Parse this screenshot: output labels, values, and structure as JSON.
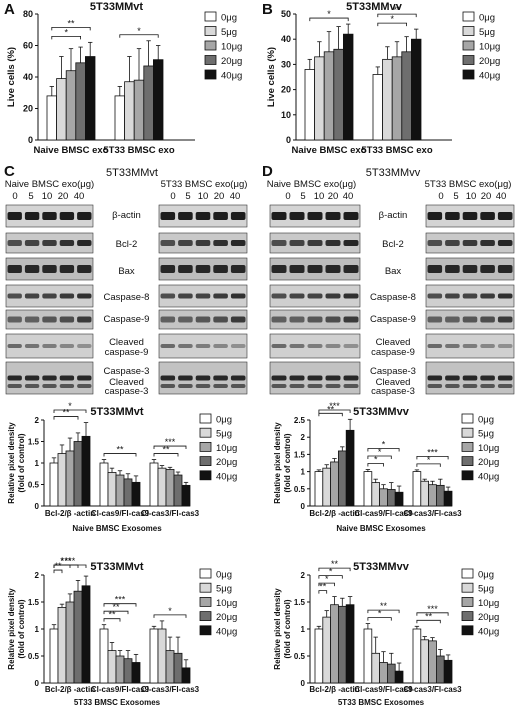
{
  "colors": {
    "dose": [
      "#ffffff",
      "#d9d9d9",
      "#a6a6a6",
      "#6e6e6e",
      "#111111"
    ],
    "band": "#2a2a2a",
    "membrane": "#c8c8c8"
  },
  "legend": {
    "labels": [
      "0μg",
      "5μg",
      "10μg",
      "20μg",
      "40μg"
    ]
  },
  "panels": {
    "A": {
      "letter": "A"
    },
    "B": {
      "letter": "B"
    },
    "C": {
      "letter": "C",
      "title": "5T33MMvt",
      "left_header": "Naive BMSC exo(μg)",
      "right_header": "5T33 BMSC exo(μg)",
      "doses": [
        "0",
        "5",
        "10",
        "20",
        "40"
      ],
      "proteins": [
        "β-actin",
        "Bcl-2",
        "Bax",
        "Caspase-8",
        "Caspase-9",
        "Cleaved",
        "caspase-9",
        "Caspase-3",
        "Cleaved",
        "caspase-3"
      ]
    },
    "D": {
      "letter": "D",
      "title": "5T33MMvv",
      "left_header": "Naive BMSC exo(μg)",
      "right_header": "5T33 BMSC exo(μg)",
      "doses": [
        "0",
        "5",
        "10",
        "20",
        "40"
      ],
      "proteins": [
        "β-actin",
        "Bcl-2",
        "Bax",
        "Caspase-8",
        "Caspase-9",
        "Cleaved",
        "caspase-9",
        "Caspase-3",
        "Cleaved",
        "caspase-3"
      ]
    }
  },
  "chart_data": [
    {
      "id": "A",
      "type": "bar",
      "title": "5T33MMvt",
      "xlabel": "",
      "ylabel": "Live cells (%)",
      "ylim": [
        0,
        80
      ],
      "yticks": [
        0,
        20,
        40,
        60,
        80
      ],
      "categories": [
        "Naive BMSC exo",
        "5T33 BMSC exo"
      ],
      "series": [
        {
          "name": "0μg",
          "values": [
            28,
            28
          ],
          "errors": [
            6,
            6
          ]
        },
        {
          "name": "5μg",
          "values": [
            39,
            37
          ],
          "errors": [
            14,
            16
          ]
        },
        {
          "name": "10μg",
          "values": [
            44,
            38
          ],
          "errors": [
            14,
            20
          ]
        },
        {
          "name": "20μg",
          "values": [
            49,
            47
          ],
          "errors": [
            10,
            16
          ]
        },
        {
          "name": "40μg",
          "values": [
            53,
            51
          ],
          "errors": [
            9,
            9
          ]
        }
      ],
      "significance": [
        {
          "group": 0,
          "from": 0,
          "to": 4,
          "label": "**"
        },
        {
          "group": 0,
          "from": 0,
          "to": 3,
          "label": "*"
        },
        {
          "group": 1,
          "from": 0,
          "to": 4,
          "label": "*"
        }
      ]
    },
    {
      "id": "B",
      "type": "bar",
      "title": "5T33MMvv",
      "xlabel": "",
      "ylabel": "Live cells (%)",
      "ylim": [
        0,
        50
      ],
      "yticks": [
        0,
        10,
        20,
        30,
        40,
        50
      ],
      "categories": [
        "Naive BMSC exo",
        "5T33 BMSC exo"
      ],
      "series": [
        {
          "name": "0μg",
          "values": [
            28,
            26
          ],
          "errors": [
            4,
            3
          ]
        },
        {
          "name": "5μg",
          "values": [
            33,
            32
          ],
          "errors": [
            6,
            5
          ]
        },
        {
          "name": "10μg",
          "values": [
            35,
            33
          ],
          "errors": [
            8,
            6
          ]
        },
        {
          "name": "20μg",
          "values": [
            36,
            35
          ],
          "errors": [
            9,
            6
          ]
        },
        {
          "name": "40μg",
          "values": [
            42,
            40
          ],
          "errors": [
            4,
            4
          ]
        }
      ],
      "significance": [
        {
          "group": 0,
          "from": 0,
          "to": 4,
          "label": "*"
        },
        {
          "group": 1,
          "from": 0,
          "to": 4,
          "label": "**"
        },
        {
          "group": 1,
          "from": 0,
          "to": 3,
          "label": "*"
        }
      ]
    },
    {
      "id": "C1",
      "type": "bar",
      "title": "5T33MMvt",
      "xlabel": "Naive BMSC Exosomes",
      "ylabel": "Relative pixel density (fold of control)",
      "ylim": [
        0,
        2.0
      ],
      "yticks": [
        0,
        0.5,
        1.0,
        1.5,
        2.0
      ],
      "categories": [
        "Bcl-2/β -actin",
        "Cl-cas9/Fl-cas9",
        "Cl-cas3/Fl-cas3"
      ],
      "series": [
        {
          "name": "0μg",
          "values": [
            1.0,
            1.0,
            1.0
          ],
          "errors": [
            0.12,
            0.08,
            0.08
          ]
        },
        {
          "name": "5μg",
          "values": [
            1.22,
            0.78,
            0.88
          ],
          "errors": [
            0.2,
            0.1,
            0.06
          ]
        },
        {
          "name": "10μg",
          "values": [
            1.28,
            0.72,
            0.85
          ],
          "errors": [
            0.3,
            0.1,
            0.05
          ]
        },
        {
          "name": "20μg",
          "values": [
            1.5,
            0.63,
            0.72
          ],
          "errors": [
            0.2,
            0.12,
            0.07
          ]
        },
        {
          "name": "40μg",
          "values": [
            1.62,
            0.55,
            0.48
          ],
          "errors": [
            0.32,
            0.15,
            0.07
          ]
        }
      ],
      "significance": [
        {
          "group": 0,
          "from": 0,
          "to": 4,
          "label": "*"
        },
        {
          "group": 0,
          "from": 0,
          "to": 3,
          "label": "**"
        },
        {
          "group": 1,
          "from": 0,
          "to": 4,
          "label": "**"
        },
        {
          "group": 2,
          "from": 0,
          "to": 4,
          "label": "***"
        },
        {
          "group": 2,
          "from": 0,
          "to": 3,
          "label": "**"
        }
      ]
    },
    {
      "id": "D1",
      "type": "bar",
      "title": "5T33MMvv",
      "xlabel": "Naive BMSC Exosomes",
      "ylabel": "Relative pixel density (fold of control)",
      "ylim": [
        0,
        2.5
      ],
      "yticks": [
        0,
        0.5,
        1.0,
        1.5,
        2.0,
        2.5
      ],
      "categories": [
        "Bcl-2/β -actin",
        "Cl-cas9/Fl-cas9",
        "Cl-cas3/Fl-cas3"
      ],
      "series": [
        {
          "name": "0μg",
          "values": [
            1.0,
            1.0,
            1.0
          ],
          "errors": [
            0.05,
            0.06,
            0.05
          ]
        },
        {
          "name": "5μg",
          "values": [
            1.1,
            0.68,
            0.72
          ],
          "errors": [
            0.1,
            0.1,
            0.06
          ]
        },
        {
          "name": "10μg",
          "values": [
            1.28,
            0.5,
            0.62
          ],
          "errors": [
            0.1,
            0.12,
            0.1
          ]
        },
        {
          "name": "20μg",
          "values": [
            1.6,
            0.48,
            0.6
          ],
          "errors": [
            0.12,
            0.2,
            0.18
          ]
        },
        {
          "name": "40μg",
          "values": [
            2.2,
            0.4,
            0.43
          ],
          "errors": [
            0.32,
            0.18,
            0.12
          ]
        }
      ],
      "significance": [
        {
          "group": 0,
          "from": 0,
          "to": 4,
          "label": "***"
        },
        {
          "group": 0,
          "from": 0,
          "to": 3,
          "label": "**"
        },
        {
          "group": 1,
          "from": 0,
          "to": 4,
          "label": "*"
        },
        {
          "group": 1,
          "from": 0,
          "to": 3,
          "label": "*"
        },
        {
          "group": 1,
          "from": 0,
          "to": 2,
          "label": "*"
        },
        {
          "group": 2,
          "from": 0,
          "to": 4,
          "label": "***"
        },
        {
          "group": 2,
          "from": 0,
          "to": 3,
          "label": "*"
        }
      ]
    },
    {
      "id": "C2",
      "type": "bar",
      "title": "5T33MMvt",
      "xlabel": "5T33 BMSC Exosomes",
      "ylabel": "Relative pixel density (fold of control)",
      "ylim": [
        0,
        2.0
      ],
      "yticks": [
        0,
        0.5,
        1.0,
        1.5,
        2.0
      ],
      "categories": [
        "Bcl-2/β -actin",
        "Cl-cas9/Fl-cas9",
        "Cl-cas3/Fl-cas3"
      ],
      "series": [
        {
          "name": "0μg",
          "values": [
            1.0,
            1.0,
            1.0
          ],
          "errors": [
            0.08,
            0.08,
            0.05
          ]
        },
        {
          "name": "5μg",
          "values": [
            1.4,
            0.6,
            1.0
          ],
          "errors": [
            0.06,
            0.15,
            0.15
          ]
        },
        {
          "name": "10μg",
          "values": [
            1.5,
            0.5,
            0.6
          ],
          "errors": [
            0.15,
            0.1,
            0.25
          ]
        },
        {
          "name": "20μg",
          "values": [
            1.7,
            0.45,
            0.55
          ],
          "errors": [
            0.2,
            0.15,
            0.3
          ]
        },
        {
          "name": "40μg",
          "values": [
            1.8,
            0.38,
            0.28
          ],
          "errors": [
            0.18,
            0.15,
            0.15
          ]
        }
      ],
      "significance": [
        {
          "group": 0,
          "from": 0,
          "to": 4,
          "label": "***"
        },
        {
          "group": 0,
          "from": 0,
          "to": 3,
          "label": "***"
        },
        {
          "group": 0,
          "from": 0,
          "to": 2,
          "label": "*"
        },
        {
          "group": 0,
          "from": 0,
          "to": 1,
          "label": "**"
        },
        {
          "group": 1,
          "from": 0,
          "to": 4,
          "label": "***"
        },
        {
          "group": 1,
          "from": 0,
          "to": 3,
          "label": "**"
        },
        {
          "group": 1,
          "from": 0,
          "to": 2,
          "label": "**"
        },
        {
          "group": 2,
          "from": 0,
          "to": 4,
          "label": "*"
        }
      ]
    },
    {
      "id": "D2",
      "type": "bar",
      "title": "5T33MMvv",
      "xlabel": "5T33 BMSC Exosomes",
      "ylabel": "Relative pixel density (fold of control)",
      "ylim": [
        0,
        2.0
      ],
      "yticks": [
        0,
        0.5,
        1.0,
        1.5,
        2.0
      ],
      "categories": [
        "Bcl-2/β -actin",
        "Cl-cas9/Fl-cas9",
        "Cl-cas3/Fl-cas3"
      ],
      "series": [
        {
          "name": "0μg",
          "values": [
            1.0,
            1.0,
            1.0
          ],
          "errors": [
            0.05,
            0.1,
            0.05
          ]
        },
        {
          "name": "5μg",
          "values": [
            1.22,
            0.55,
            0.8
          ],
          "errors": [
            0.12,
            0.3,
            0.06
          ]
        },
        {
          "name": "10μg",
          "values": [
            1.45,
            0.38,
            0.78
          ],
          "errors": [
            0.15,
            0.2,
            0.06
          ]
        },
        {
          "name": "20μg",
          "values": [
            1.42,
            0.35,
            0.5
          ],
          "errors": [
            0.15,
            0.2,
            0.12
          ]
        },
        {
          "name": "40μg",
          "values": [
            1.45,
            0.22,
            0.42
          ],
          "errors": [
            0.15,
            0.15,
            0.1
          ]
        }
      ],
      "significance": [
        {
          "group": 0,
          "from": 0,
          "to": 4,
          "label": "**"
        },
        {
          "group": 0,
          "from": 0,
          "to": 3,
          "label": "*"
        },
        {
          "group": 0,
          "from": 0,
          "to": 2,
          "label": "*"
        },
        {
          "group": 0,
          "from": 0,
          "to": 1,
          "label": "**"
        },
        {
          "group": 1,
          "from": 0,
          "to": 4,
          "label": "**"
        },
        {
          "group": 1,
          "from": 0,
          "to": 3,
          "label": "*"
        },
        {
          "group": 2,
          "from": 0,
          "to": 4,
          "label": "***"
        },
        {
          "group": 2,
          "from": 0,
          "to": 3,
          "label": "**"
        }
      ]
    }
  ]
}
